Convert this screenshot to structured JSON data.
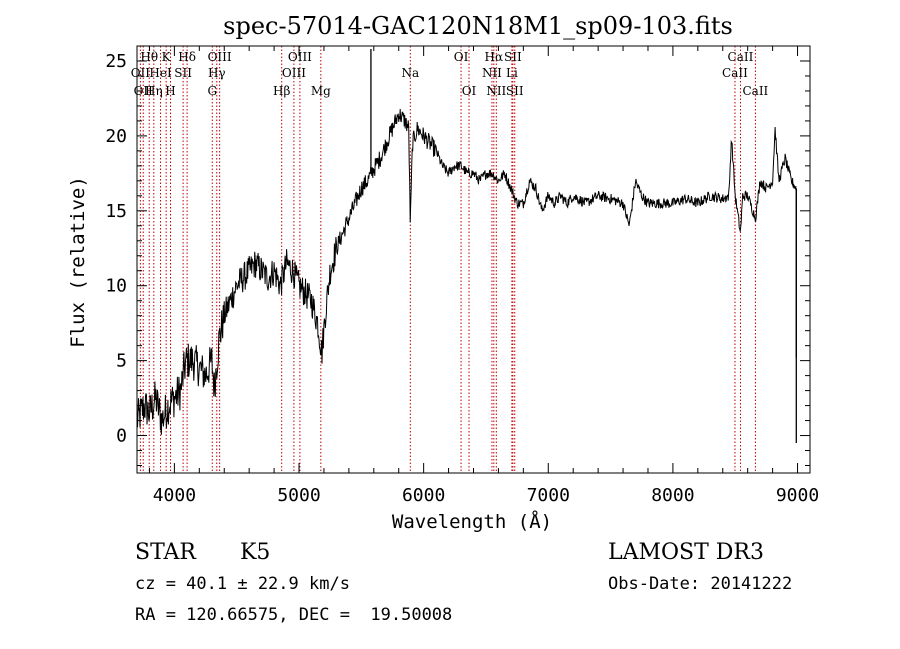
{
  "chart_data": {
    "type": "line",
    "title": "spec-57014-GAC120N18M1_sp09-103.fits",
    "xlabel": "Wavelength (Å)",
    "ylabel": "Flux (relative)",
    "xlim": [
      3700,
      9100
    ],
    "ylim": [
      -2.5,
      26
    ],
    "xticks": [
      4000,
      5000,
      6000,
      7000,
      8000,
      9000
    ],
    "yticks": [
      0,
      5,
      10,
      15,
      20,
      25
    ],
    "series": [
      {
        "name": "spectrum",
        "anchors": [
          [
            3700,
            1.0
          ],
          [
            3760,
            2.0
          ],
          [
            3800,
            1.5
          ],
          [
            3850,
            2.5
          ],
          [
            3900,
            1.0
          ],
          [
            3950,
            2.0
          ],
          [
            4000,
            2.5
          ],
          [
            4050,
            3.0
          ],
          [
            4080,
            4.5
          ],
          [
            4100,
            5.0
          ],
          [
            4150,
            5.0
          ],
          [
            4200,
            4.5
          ],
          [
            4250,
            4.0
          ],
          [
            4300,
            5.0
          ],
          [
            4320,
            3.2
          ],
          [
            4360,
            6.5
          ],
          [
            4400,
            8.0
          ],
          [
            4450,
            9.0
          ],
          [
            4500,
            10.0
          ],
          [
            4550,
            10.5
          ],
          [
            4600,
            11.0
          ],
          [
            4650,
            11.5
          ],
          [
            4700,
            11.0
          ],
          [
            4750,
            10.5
          ],
          [
            4800,
            11.0
          ],
          [
            4850,
            10.0
          ],
          [
            4900,
            11.5
          ],
          [
            4950,
            11.0
          ],
          [
            5000,
            10.0
          ],
          [
            5050,
            9.5
          ],
          [
            5100,
            9.0
          ],
          [
            5150,
            7.5
          ],
          [
            5183,
            5.5
          ],
          [
            5210,
            8.0
          ],
          [
            5250,
            11.0
          ],
          [
            5300,
            12.5
          ],
          [
            5350,
            13.5
          ],
          [
            5400,
            14.5
          ],
          [
            5450,
            15.5
          ],
          [
            5500,
            16.5
          ],
          [
            5550,
            17.0
          ],
          [
            5580,
            17.5
          ],
          [
            5650,
            18.5
          ],
          [
            5700,
            19.5
          ],
          [
            5750,
            20.5
          ],
          [
            5800,
            21.5
          ],
          [
            5850,
            21.0
          ],
          [
            5880,
            20.5
          ],
          [
            5893,
            14.0
          ],
          [
            5910,
            19.5
          ],
          [
            5950,
            20.5
          ],
          [
            6000,
            20.0
          ],
          [
            6050,
            19.5
          ],
          [
            6100,
            19.0
          ],
          [
            6150,
            18.0
          ],
          [
            6200,
            17.5
          ],
          [
            6250,
            18.0
          ],
          [
            6300,
            18.0
          ],
          [
            6350,
            17.5
          ],
          [
            6400,
            17.5
          ],
          [
            6450,
            17.0
          ],
          [
            6500,
            17.5
          ],
          [
            6550,
            17.5
          ],
          [
            6600,
            17.0
          ],
          [
            6650,
            17.5
          ],
          [
            6700,
            16.5
          ],
          [
            6750,
            15.5
          ],
          [
            6800,
            15.5
          ],
          [
            6850,
            17.0
          ],
          [
            6900,
            16.5
          ],
          [
            6950,
            15.0
          ],
          [
            7000,
            16.0
          ],
          [
            7050,
            15.5
          ],
          [
            7100,
            16.0
          ],
          [
            7150,
            15.5
          ],
          [
            7200,
            16.0
          ],
          [
            7300,
            15.5
          ],
          [
            7400,
            16.0
          ],
          [
            7500,
            15.8
          ],
          [
            7600,
            15.5
          ],
          [
            7650,
            14.0
          ],
          [
            7700,
            17.0
          ],
          [
            7750,
            16.0
          ],
          [
            7800,
            15.5
          ],
          [
            7900,
            15.5
          ],
          [
            8000,
            15.5
          ],
          [
            8100,
            15.8
          ],
          [
            8200,
            15.5
          ],
          [
            8300,
            16.0
          ],
          [
            8400,
            15.8
          ],
          [
            8450,
            16.0
          ],
          [
            8470,
            20.0
          ],
          [
            8500,
            16.0
          ],
          [
            8542,
            13.5
          ],
          [
            8560,
            16.0
          ],
          [
            8600,
            16.0
          ],
          [
            8662,
            14.5
          ],
          [
            8700,
            17.0
          ],
          [
            8750,
            16.5
          ],
          [
            8800,
            17.0
          ],
          [
            8820,
            20.5
          ],
          [
            8850,
            17.0
          ],
          [
            8900,
            18.5
          ],
          [
            8950,
            17.0
          ],
          [
            8990,
            16.5
          ]
        ]
      }
    ],
    "spikes": [
      {
        "x": 5577,
        "y": 25.8
      },
      {
        "x": 8990,
        "y": -0.5
      },
      {
        "x": 8990,
        "y": 5.2
      }
    ],
    "lines": [
      {
        "x": 3727,
        "label": "OII",
        "row": 2
      },
      {
        "x": 3750,
        "label": "OII",
        "row": 3
      },
      {
        "x": 3798,
        "label": "Hθ",
        "row": 1
      },
      {
        "x": 3835,
        "label": "Hη",
        "row": 3
      },
      {
        "x": 3889,
        "label": "HeI",
        "row": 2
      },
      {
        "x": 3934,
        "label": "K",
        "row": 1
      },
      {
        "x": 3969,
        "label": "H",
        "row": 3
      },
      {
        "x": 4070,
        "label": "SII",
        "row": 2
      },
      {
        "x": 4102,
        "label": "Hδ",
        "row": 1
      },
      {
        "x": 4304,
        "label": "G",
        "row": 3
      },
      {
        "x": 4340,
        "label": "Hγ",
        "row": 2
      },
      {
        "x": 4363,
        "label": "OIII",
        "row": 1
      },
      {
        "x": 4861,
        "label": "Hβ",
        "row": 3
      },
      {
        "x": 4959,
        "label": "OIII",
        "row": 2
      },
      {
        "x": 5007,
        "label": "OIII",
        "row": 1
      },
      {
        "x": 5175,
        "label": "Mg",
        "row": 3
      },
      {
        "x": 5893,
        "label": "Na",
        "row": 2
      },
      {
        "x": 6300,
        "label": "OI",
        "row": 1
      },
      {
        "x": 6364,
        "label": "OI",
        "row": 3
      },
      {
        "x": 6548,
        "label": "NII",
        "row": 2
      },
      {
        "x": 6563,
        "label": "Hα",
        "row": 1
      },
      {
        "x": 6583,
        "label": "NII",
        "row": 3
      },
      {
        "x": 6708,
        "label": "Li",
        "row": 2
      },
      {
        "x": 6716,
        "label": "SII",
        "row": 1
      },
      {
        "x": 6731,
        "label": "SII",
        "row": 3
      },
      {
        "x": 8498,
        "label": "CaII",
        "row": 2
      },
      {
        "x": 8542,
        "label": "CaII",
        "row": 1
      },
      {
        "x": 8662,
        "label": "CaII",
        "row": 3
      }
    ]
  },
  "info": {
    "class": "STAR",
    "subclass": "K5",
    "survey": "LAMOST DR3",
    "cz": "cz = 40.1 ± 22.9 km/s",
    "obs_date": "Obs-Date: 20141222",
    "coords": "RA = 120.66575, DEC =  19.50008"
  }
}
